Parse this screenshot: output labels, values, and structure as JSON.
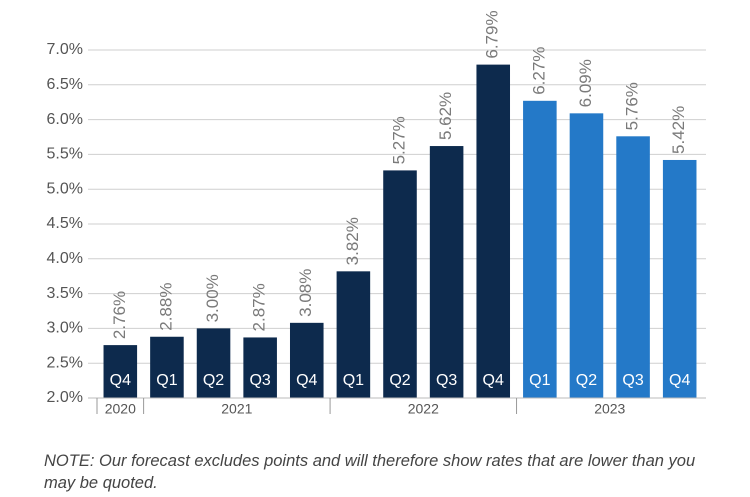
{
  "chart_data": {
    "type": "bar",
    "categories": [
      "Q4",
      "Q1",
      "Q2",
      "Q3",
      "Q4",
      "Q1",
      "Q2",
      "Q3",
      "Q4",
      "Q1",
      "Q2",
      "Q3",
      "Q4"
    ],
    "years": [
      "2020",
      "2021",
      null,
      null,
      null,
      "2022",
      null,
      null,
      null,
      "2023",
      null,
      null,
      null
    ],
    "values": [
      2.76,
      2.88,
      3.0,
      2.87,
      3.08,
      3.82,
      5.27,
      5.62,
      6.79,
      6.27,
      6.09,
      5.76,
      5.42
    ],
    "value_labels": [
      "2.76%",
      "2.88%",
      "3.00%",
      "2.87%",
      "3.08%",
      "3.82%",
      "5.27%",
      "5.62%",
      "6.79%",
      "6.27%",
      "6.09%",
      "5.76%",
      "5.42%"
    ],
    "colors": [
      "#0d2a4d",
      "#0d2a4d",
      "#0d2a4d",
      "#0d2a4d",
      "#0d2a4d",
      "#0d2a4d",
      "#0d2a4d",
      "#0d2a4d",
      "#0d2a4d",
      "#2479c8",
      "#2479c8",
      "#2479c8",
      "#2479c8"
    ],
    "ylim": [
      2,
      7
    ],
    "yticks": [
      {
        "value": 2,
        "label": "2.0%"
      },
      {
        "value": 2.5,
        "label": "2.5%"
      },
      {
        "value": 3,
        "label": "3.0%"
      },
      {
        "value": 3.5,
        "label": "3.5%"
      },
      {
        "value": 4,
        "label": "4.0%"
      },
      {
        "value": 4.5,
        "label": "4.5%"
      },
      {
        "value": 5,
        "label": "5.0%"
      },
      {
        "value": 5.5,
        "label": "5.5%"
      },
      {
        "value": 6,
        "label": "6.0%"
      },
      {
        "value": 6.5,
        "label": "6.5%"
      },
      {
        "value": 7,
        "label": "7.0%"
      }
    ],
    "grid": true,
    "note": "NOTE: Our forecast excludes points and will therefore show rates that are lower than you may be quoted."
  }
}
